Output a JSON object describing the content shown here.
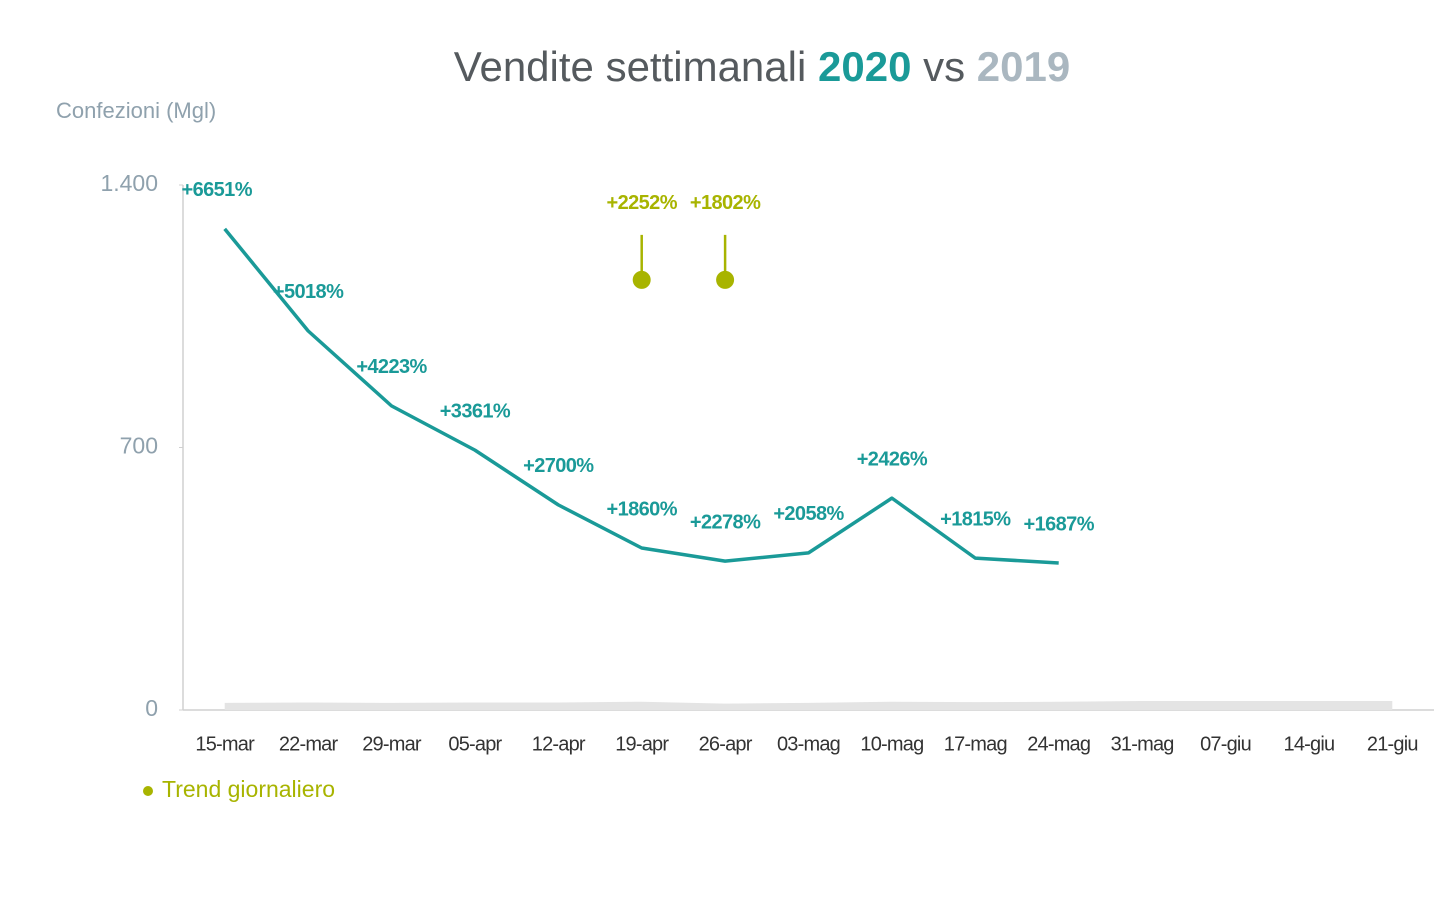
{
  "chart_data": {
    "type": "line",
    "title_parts": [
      {
        "text": "Vendite settimanali",
        "color": "#555a5e"
      },
      {
        "text": "2020",
        "color": "#1a9a98"
      },
      {
        "text": "vs",
        "color": "#555a5e"
      },
      {
        "text": "2019",
        "color": "#aab7c0"
      }
    ],
    "y_label": "Confezioni (Mgl)",
    "categories": [
      "15-mar",
      "22-mar",
      "29-mar",
      "05-apr",
      "12-apr",
      "19-apr",
      "26-apr",
      "03-mag",
      "10-mag",
      "17-mag",
      "24-mag",
      "31-mag",
      "07-giu",
      "14-giu",
      "21-giu"
    ],
    "ylim": [
      0,
      1400
    ],
    "yticks": [
      0,
      700,
      {
        "value": 1400,
        "label": "1.400"
      }
    ],
    "series": [
      {
        "type": "line",
        "color": "#1a9a98",
        "values": [
          1283,
          1011,
          811,
          693,
          547,
          432,
          397,
          419,
          565,
          405,
          392,
          null,
          null,
          null,
          null
        ],
        "annotations": [
          "+6651%",
          "+5018%",
          "+4223%",
          "+3361%",
          "+2700%",
          "+1860%",
          "+2278%",
          "+2058%",
          "+2426%",
          "+1815%",
          "+1687%",
          null,
          null,
          null,
          null
        ]
      },
      {
        "type": "area",
        "color": "#e4e4e4",
        "values": [
          19,
          20,
          19,
          20,
          20,
          22,
          17,
          19,
          22,
          21,
          22,
          24,
          24,
          24,
          24
        ]
      },
      {
        "type": "marker",
        "name": "Trend giornaliero",
        "color": "#a8b400",
        "values": [
          null,
          null,
          null,
          null,
          null,
          1147,
          1147,
          null,
          null,
          null,
          null,
          null,
          null,
          null,
          null
        ],
        "annotations": [
          null,
          null,
          null,
          null,
          null,
          "+2252%",
          "+1802%",
          null,
          null,
          null,
          null,
          null,
          null,
          null,
          null
        ]
      }
    ]
  }
}
